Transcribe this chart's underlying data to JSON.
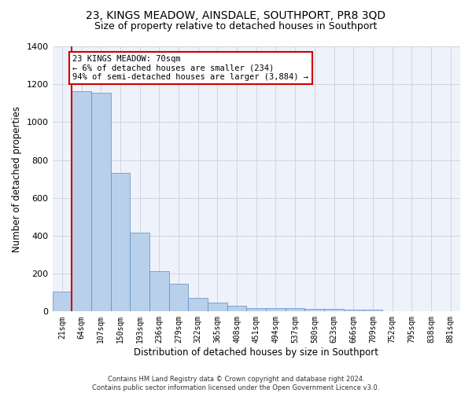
{
  "title": "23, KINGS MEADOW, AINSDALE, SOUTHPORT, PR8 3QD",
  "subtitle": "Size of property relative to detached houses in Southport",
  "xlabel": "Distribution of detached houses by size in Southport",
  "ylabel": "Number of detached properties",
  "categories": [
    "21sqm",
    "64sqm",
    "107sqm",
    "150sqm",
    "193sqm",
    "236sqm",
    "279sqm",
    "322sqm",
    "365sqm",
    "408sqm",
    "451sqm",
    "494sqm",
    "537sqm",
    "580sqm",
    "623sqm",
    "666sqm",
    "709sqm",
    "752sqm",
    "795sqm",
    "838sqm",
    "881sqm"
  ],
  "bar_heights": [
    105,
    1165,
    1155,
    730,
    415,
    215,
    148,
    70,
    48,
    30,
    18,
    18,
    18,
    15,
    15,
    8,
    8,
    0,
    0,
    0,
    0
  ],
  "bar_color": "#b8d0ea",
  "bar_edge_color": "#5b8cc8",
  "vline_color": "#cc0000",
  "annotation_text": "23 KINGS MEADOW: 70sqm\n← 6% of detached houses are smaller (234)\n94% of semi-detached houses are larger (3,884) →",
  "annotation_box_color": "#ffffff",
  "annotation_box_edge": "#cc0000",
  "ylim": [
    0,
    1400
  ],
  "yticks": [
    0,
    200,
    400,
    600,
    800,
    1000,
    1200,
    1400
  ],
  "bg_color": "#eef2fa",
  "footer_line1": "Contains HM Land Registry data © Crown copyright and database right 2024.",
  "footer_line2": "Contains public sector information licensed under the Open Government Licence v3.0.",
  "title_fontsize": 10,
  "subtitle_fontsize": 9,
  "xlabel_fontsize": 8.5,
  "ylabel_fontsize": 8.5
}
